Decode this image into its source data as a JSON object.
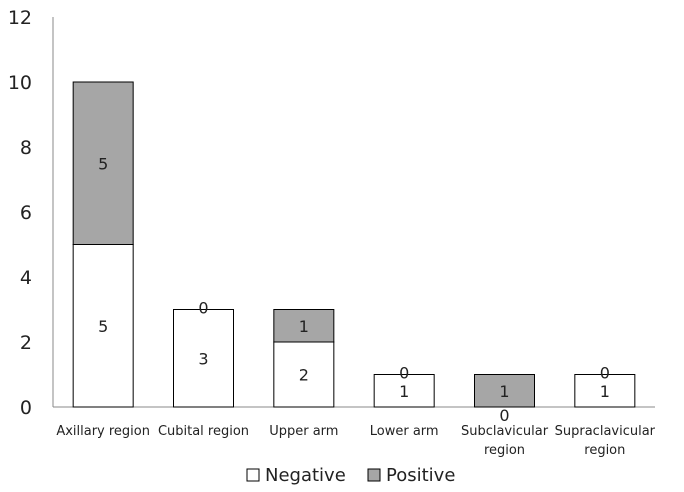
{
  "chart_data": {
    "type": "bar",
    "stacked": true,
    "categories": [
      "Axillary region",
      "Cubital region",
      "Upper arm",
      "Lower arm",
      "Subclavicular\nregion",
      "Supraclavicular\nregion"
    ],
    "series": [
      {
        "name": "Negative",
        "values": [
          5,
          3,
          2,
          1,
          0,
          1
        ],
        "color": "#ffffff"
      },
      {
        "name": "Positive",
        "values": [
          5,
          0,
          1,
          0,
          1,
          0
        ],
        "color": "#a6a6a6"
      }
    ],
    "ylim": [
      0,
      12
    ],
    "yticks": [
      0,
      2,
      4,
      6,
      8,
      10,
      12
    ],
    "grid": false,
    "legend_position": "bottom",
    "title": "",
    "xlabel": "",
    "ylabel": ""
  }
}
